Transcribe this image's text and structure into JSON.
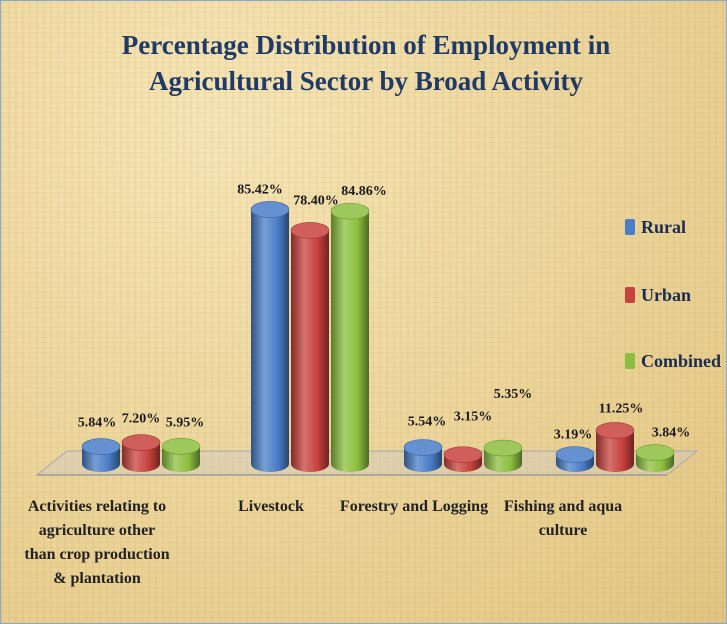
{
  "chart_data": {
    "type": "bar",
    "style": "3d-cylinder",
    "title": "Percentage Distribution of Employment in Agricultural Sector by Broad Activity",
    "categories": [
      "Activities relating to agriculture other than crop production & plantation",
      "Livestock",
      "Forestry and Logging",
      "Fishing and aqua culture"
    ],
    "series": [
      {
        "name": "Rural",
        "values": [
          5.84,
          85.42,
          5.54,
          3.19
        ],
        "labels": [
          "5.84%",
          "85.42%",
          "5.54%",
          "3.19%"
        ],
        "color": "#4a7ec8"
      },
      {
        "name": "Urban",
        "values": [
          7.2,
          78.4,
          3.15,
          11.25
        ],
        "labels": [
          "7.20%",
          "78.40%",
          "3.15%",
          "11.25%"
        ],
        "color": "#c8423e"
      },
      {
        "name": "Combined",
        "values": [
          5.95,
          84.86,
          5.35,
          3.84
        ],
        "labels": [
          "5.95%",
          "84.86%",
          "5.35%",
          "3.84%"
        ],
        "color": "#8cbf3f"
      }
    ],
    "xlabel": "",
    "ylabel": "",
    "ylim": [
      0,
      100
    ],
    "grid": false,
    "legend": "right"
  }
}
